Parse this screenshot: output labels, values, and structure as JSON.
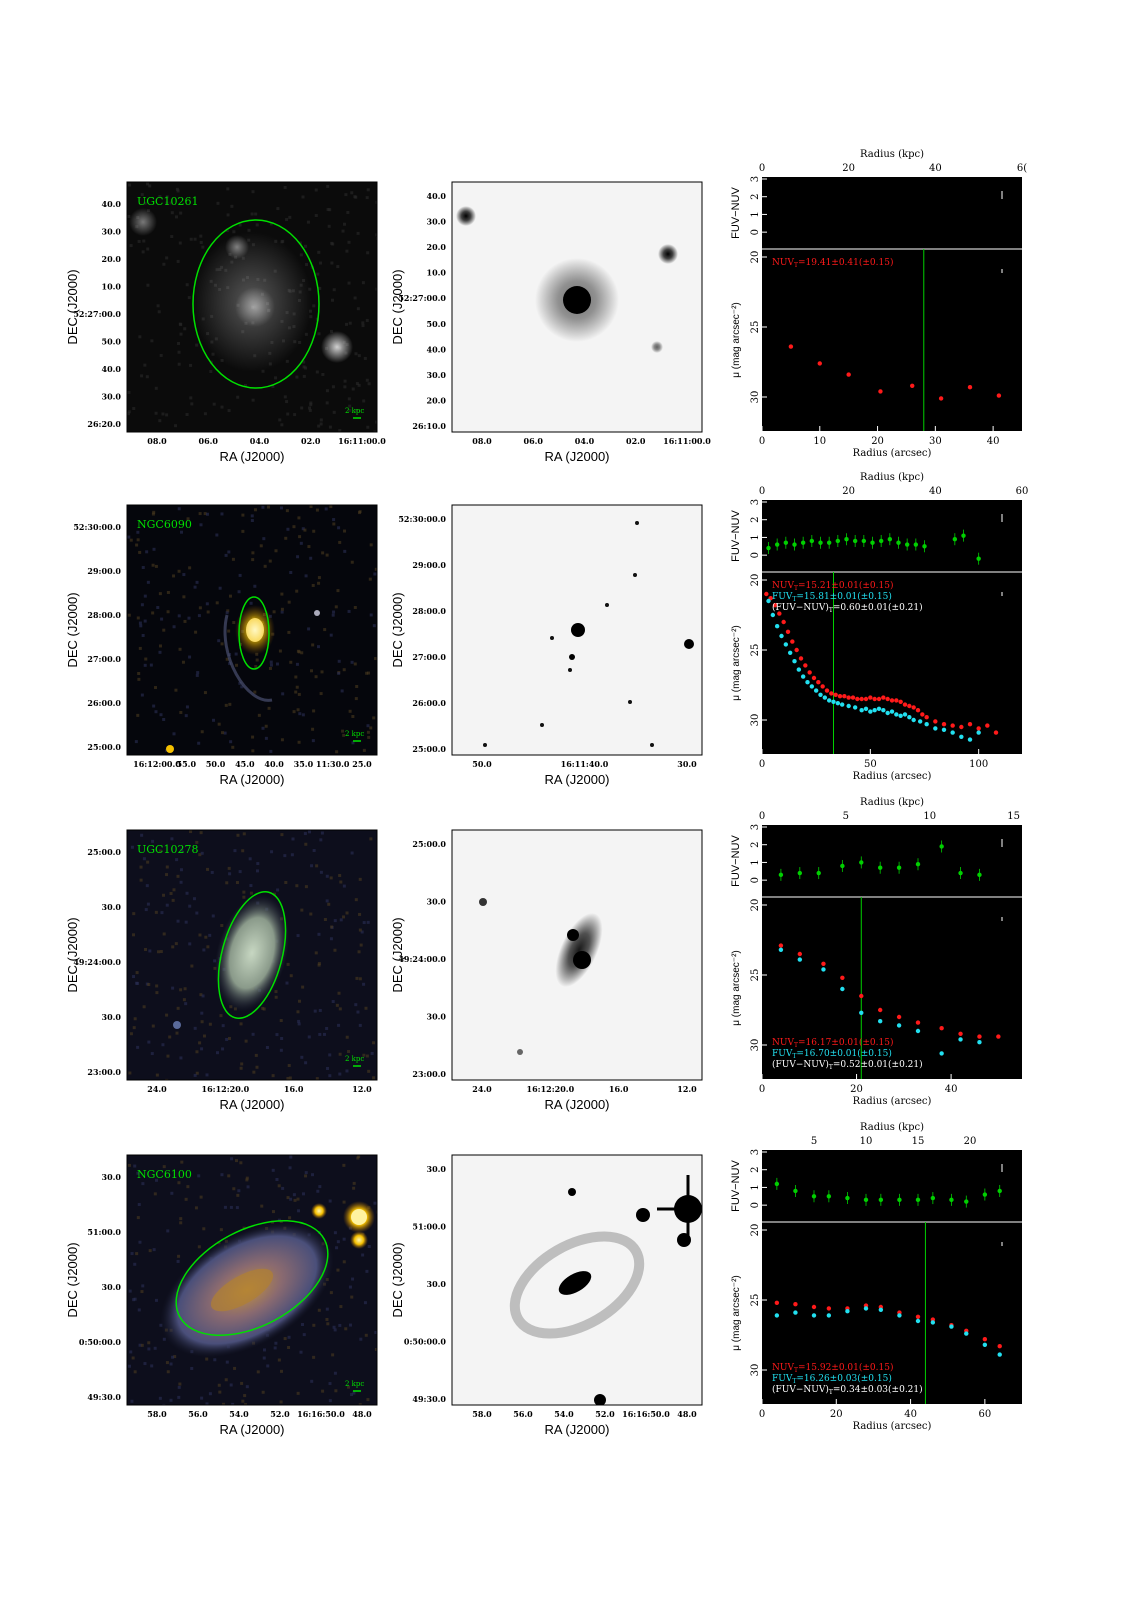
{
  "colors": {
    "nuv": "#ff1a1a",
    "fuv": "#22e0f0",
    "color": "#00d000",
    "white": "#ffffff",
    "ellipse": "#00e000"
  },
  "rows": [
    {
      "name": "UGC10261",
      "scale": "2 kpc",
      "image_style": "gray-dark",
      "dec_ticks": [
        "40.0",
        "30.0",
        "20.0",
        "10.0",
        "52:27:00.0",
        "50.0",
        "40.0",
        "30.0",
        "26:20.0"
      ],
      "ra_ticks": [
        "08.0",
        "06.0",
        "04.0",
        "02.0",
        "16:11:00.0"
      ],
      "dec_ticks2": [
        "40.0",
        "30.0",
        "20.0",
        "10.0",
        "52:27:00.0",
        "50.0",
        "40.0",
        "30.0",
        "20.0",
        "26:10.0"
      ],
      "ra_ticks2": [
        "08.0",
        "06.0",
        "04.0",
        "02.0",
        "16:11:00.0"
      ],
      "kpc_ticks": [
        "0",
        "20",
        "40",
        "6("
      ],
      "kpc_max": 60,
      "arc_max": 45,
      "arc_ticks": [
        0,
        10,
        20,
        30,
        40
      ],
      "cut": 28,
      "labels": [
        {
          "text": "NUV",
          "sub": "T",
          "val": "=19.41±0.41(±0.15)",
          "color": "nuv"
        }
      ],
      "labels_pos": "top",
      "color_pts": [],
      "nuv": [
        [
          5,
          26.4
        ],
        [
          10,
          27.6
        ],
        [
          15,
          28.4
        ],
        [
          20.5,
          29.6
        ],
        [
          26,
          29.2
        ],
        [
          31,
          30.1
        ],
        [
          36,
          29.3
        ],
        [
          41,
          29.9
        ]
      ],
      "fuv": []
    },
    {
      "name": "NGC6090",
      "scale": "2 kpc",
      "image_style": "color",
      "dec_ticks": [
        "52:30:00.0",
        "29:00.0",
        "28:00.0",
        "27:00.0",
        "26:00.0",
        "25:00.0"
      ],
      "ra_ticks": [
        "16:12:00.0",
        "55.0",
        "50.0",
        "45.0",
        "40.0",
        "35.0",
        "11:30.0",
        "25.0"
      ],
      "dec_ticks2": [
        "52:30:00.0",
        "29:00.0",
        "28:00.0",
        "27:00.0",
        "26:00.0",
        "25:00.0"
      ],
      "ra_ticks2": [
        "50.0",
        "16:11:40.0",
        "30.0"
      ],
      "kpc_ticks": [
        "0",
        "20",
        "40",
        "60"
      ],
      "kpc_max": 70,
      "arc_max": 120,
      "arc_ticks": [
        0,
        50,
        100
      ],
      "cut": 33,
      "labels": [
        {
          "text": "NUV",
          "sub": "T",
          "val": "=15.21±0.01(±0.15)",
          "color": "nuv"
        },
        {
          "text": "FUV",
          "sub": "T",
          "val": "=15.81±0.01(±0.15)",
          "color": "fuv"
        },
        {
          "text": "(FUV−NUV)",
          "sub": "T",
          "val": "=0.60±0.01(±0.21)",
          "color": "white"
        }
      ],
      "labels_pos": "top",
      "color_pts": [
        [
          3,
          0.4
        ],
        [
          7,
          0.6
        ],
        [
          11,
          0.7
        ],
        [
          15,
          0.6
        ],
        [
          19,
          0.7
        ],
        [
          23,
          0.8
        ],
        [
          27,
          0.7
        ],
        [
          31,
          0.7
        ],
        [
          35,
          0.8
        ],
        [
          39,
          0.9
        ],
        [
          43,
          0.8
        ],
        [
          47,
          0.8
        ],
        [
          51,
          0.7
        ],
        [
          55,
          0.8
        ],
        [
          59,
          0.9
        ],
        [
          63,
          0.7
        ],
        [
          67,
          0.6
        ],
        [
          71,
          0.6
        ],
        [
          75,
          0.5
        ],
        [
          89,
          0.9
        ],
        [
          93,
          1.1
        ],
        [
          100,
          -0.2
        ]
      ],
      "nuv": [
        [
          2,
          21.0
        ],
        [
          4,
          21.3
        ],
        [
          6,
          21.8
        ],
        [
          8,
          22.4
        ],
        [
          10,
          23.0
        ],
        [
          12,
          23.7
        ],
        [
          14,
          24.4
        ],
        [
          16,
          25.0
        ],
        [
          18,
          25.6
        ],
        [
          20,
          26.1
        ],
        [
          22,
          26.6
        ],
        [
          24,
          27.0
        ],
        [
          26,
          27.3
        ],
        [
          28,
          27.6
        ],
        [
          30,
          27.9
        ],
        [
          32,
          28.1
        ],
        [
          34,
          28.2
        ],
        [
          36,
          28.3
        ],
        [
          38,
          28.3
        ],
        [
          40,
          28.4
        ],
        [
          42,
          28.4
        ],
        [
          44,
          28.5
        ],
        [
          46,
          28.5
        ],
        [
          48,
          28.5
        ],
        [
          50,
          28.4
        ],
        [
          52,
          28.5
        ],
        [
          54,
          28.5
        ],
        [
          56,
          28.4
        ],
        [
          58,
          28.5
        ],
        [
          60,
          28.6
        ],
        [
          62,
          28.6
        ],
        [
          64,
          28.7
        ],
        [
          66,
          28.9
        ],
        [
          68,
          29.0
        ],
        [
          70,
          29.1
        ],
        [
          72,
          29.3
        ],
        [
          74,
          29.6
        ],
        [
          76,
          29.8
        ],
        [
          80,
          30.1
        ],
        [
          84,
          30.3
        ],
        [
          88,
          30.4
        ],
        [
          92,
          30.5
        ],
        [
          96,
          30.3
        ],
        [
          100,
          30.6
        ],
        [
          104,
          30.4
        ],
        [
          108,
          30.9
        ]
      ],
      "fuv": [
        [
          3,
          21.5
        ],
        [
          5,
          22.5
        ],
        [
          7,
          23.3
        ],
        [
          9,
          24.0
        ],
        [
          11,
          24.6
        ],
        [
          13,
          25.2
        ],
        [
          15,
          25.8
        ],
        [
          17,
          26.4
        ],
        [
          19,
          26.9
        ],
        [
          21,
          27.3
        ],
        [
          23,
          27.6
        ],
        [
          25,
          27.9
        ],
        [
          27,
          28.2
        ],
        [
          29,
          28.4
        ],
        [
          31,
          28.6
        ],
        [
          33,
          28.7
        ],
        [
          35,
          28.8
        ],
        [
          37,
          28.9
        ],
        [
          40,
          29.0
        ],
        [
          43,
          29.1
        ],
        [
          46,
          29.3
        ],
        [
          48,
          29.2
        ],
        [
          50,
          29.4
        ],
        [
          52,
          29.3
        ],
        [
          54,
          29.2
        ],
        [
          56,
          29.3
        ],
        [
          58,
          29.5
        ],
        [
          60,
          29.4
        ],
        [
          62,
          29.6
        ],
        [
          64,
          29.7
        ],
        [
          66,
          29.6
        ],
        [
          68,
          29.8
        ],
        [
          70,
          30.0
        ],
        [
          73,
          30.1
        ],
        [
          76,
          30.3
        ],
        [
          80,
          30.6
        ],
        [
          84,
          30.7
        ],
        [
          88,
          30.9
        ],
        [
          92,
          31.2
        ],
        [
          96,
          31.4
        ],
        [
          100,
          30.9
        ]
      ]
    },
    {
      "name": "UGC10278",
      "scale": "2 kpc",
      "image_style": "color-dim",
      "dec_ticks": [
        "25:00.0",
        "30.0",
        "49:24:00.0",
        "30.0",
        "23:00.0"
      ],
      "ra_ticks": [
        "24.0",
        "16:12:20.0",
        "16.0",
        "12.0"
      ],
      "dec_ticks2": [
        "25:00.0",
        "30.0",
        "49:24:00.0",
        "30.0",
        "23:00.0"
      ],
      "ra_ticks2": [
        "24.0",
        "16:12:20.0",
        "16.0",
        "12.0"
      ],
      "kpc_ticks": [
        "0",
        "5",
        "10",
        "15"
      ],
      "kpc_max": 15.5,
      "arc_max": 55,
      "arc_ticks": [
        0,
        20,
        40
      ],
      "cut": 21,
      "labels": [
        {
          "text": "NUV",
          "sub": "T",
          "val": "=16.17±0.01(±0.15)",
          "color": "nuv"
        },
        {
          "text": "FUV",
          "sub": "T",
          "val": "=16.70±0.01(±0.15)",
          "color": "fuv"
        },
        {
          "text": "(FUV−NUV)",
          "sub": "T",
          "val": "=0.52±0.01(±0.21)",
          "color": "white"
        }
      ],
      "labels_pos": "bottom",
      "color_pts": [
        [
          4,
          0.3
        ],
        [
          8,
          0.4
        ],
        [
          12,
          0.4
        ],
        [
          17,
          0.8
        ],
        [
          21,
          1.0
        ],
        [
          25,
          0.7
        ],
        [
          29,
          0.7
        ],
        [
          33,
          0.9
        ],
        [
          38,
          1.9
        ],
        [
          42,
          0.4
        ],
        [
          46,
          0.3
        ]
      ],
      "nuv": [
        [
          4,
          22.9
        ],
        [
          8,
          23.5
        ],
        [
          13,
          24.2
        ],
        [
          17,
          25.2
        ],
        [
          21,
          26.5
        ],
        [
          25,
          27.5
        ],
        [
          29,
          28.0
        ],
        [
          33,
          28.4
        ],
        [
          38,
          28.8
        ],
        [
          42,
          29.2
        ],
        [
          46,
          29.4
        ],
        [
          50,
          29.4
        ]
      ],
      "fuv": [
        [
          4,
          23.2
        ],
        [
          8,
          23.9
        ],
        [
          13,
          24.6
        ],
        [
          17,
          26.0
        ],
        [
          21,
          27.7
        ],
        [
          25,
          28.3
        ],
        [
          29,
          28.6
        ],
        [
          33,
          29.0
        ],
        [
          38,
          30.6
        ],
        [
          42,
          29.6
        ],
        [
          46,
          29.8
        ]
      ]
    },
    {
      "name": "NGC6100",
      "scale": "2 kpc",
      "image_style": "color-blue",
      "dec_ticks": [
        "30.0",
        "51:00.0",
        "30.0",
        "0:50:00.0",
        "49:30.0"
      ],
      "ra_ticks": [
        "58.0",
        "56.0",
        "54.0",
        "52.0",
        "16:16:50.0",
        "48.0"
      ],
      "dec_ticks2": [
        "30.0",
        "51:00.0",
        "30.0",
        "0:50:00.0",
        "49:30.0"
      ],
      "ra_ticks2": [
        "58.0",
        "56.0",
        "54.0",
        "52.0",
        "16:16:50.0",
        "48.0"
      ],
      "kpc_ticks": [
        "5",
        "10",
        "15",
        "20"
      ],
      "kpc_min": 0,
      "kpc_max": 25,
      "arc_max": 70,
      "arc_ticks": [
        0,
        20,
        40,
        60
      ],
      "cut": 44,
      "labels": [
        {
          "text": "NUV",
          "sub": "T",
          "val": "=15.92±0.01(±0.15)",
          "color": "nuv"
        },
        {
          "text": "FUV",
          "sub": "T",
          "val": "=16.26±0.03(±0.15)",
          "color": "fuv"
        },
        {
          "text": "(FUV−NUV)",
          "sub": "T",
          "val": "=0.34±0.03(±0.21)",
          "color": "white"
        }
      ],
      "labels_pos": "bottom",
      "color_pts": [
        [
          4,
          1.2
        ],
        [
          9,
          0.8
        ],
        [
          14,
          0.5
        ],
        [
          18,
          0.5
        ],
        [
          23,
          0.4
        ],
        [
          28,
          0.3
        ],
        [
          32,
          0.3
        ],
        [
          37,
          0.3
        ],
        [
          42,
          0.3
        ],
        [
          46,
          0.4
        ],
        [
          51,
          0.3
        ],
        [
          55,
          0.2
        ],
        [
          60,
          0.6
        ],
        [
          64,
          0.8
        ]
      ],
      "nuv": [
        [
          4,
          25.2
        ],
        [
          9,
          25.3
        ],
        [
          14,
          25.5
        ],
        [
          18,
          25.6
        ],
        [
          23,
          25.6
        ],
        [
          28,
          25.4
        ],
        [
          32,
          25.5
        ],
        [
          37,
          25.9
        ],
        [
          42,
          26.2
        ],
        [
          46,
          26.4
        ],
        [
          51,
          26.8
        ],
        [
          55,
          27.2
        ],
        [
          60,
          27.8
        ],
        [
          64,
          28.3
        ]
      ],
      "fuv": [
        [
          4,
          26.1
        ],
        [
          9,
          25.9
        ],
        [
          14,
          26.1
        ],
        [
          18,
          26.1
        ],
        [
          23,
          25.8
        ],
        [
          28,
          25.6
        ],
        [
          32,
          25.7
        ],
        [
          37,
          26.1
        ],
        [
          42,
          26.5
        ],
        [
          46,
          26.6
        ],
        [
          51,
          26.9
        ],
        [
          55,
          27.4
        ],
        [
          60,
          28.2
        ],
        [
          64,
          28.9
        ]
      ]
    }
  ],
  "axes": {
    "dec": "DEC (J2000)",
    "ra": "RA (J2000)",
    "kpc": "Radius (kpc)",
    "arcsec": "Radius (arcsec)",
    "color": "FUV−NUV",
    "mu": "μ (mag arcsec⁻²)"
  }
}
